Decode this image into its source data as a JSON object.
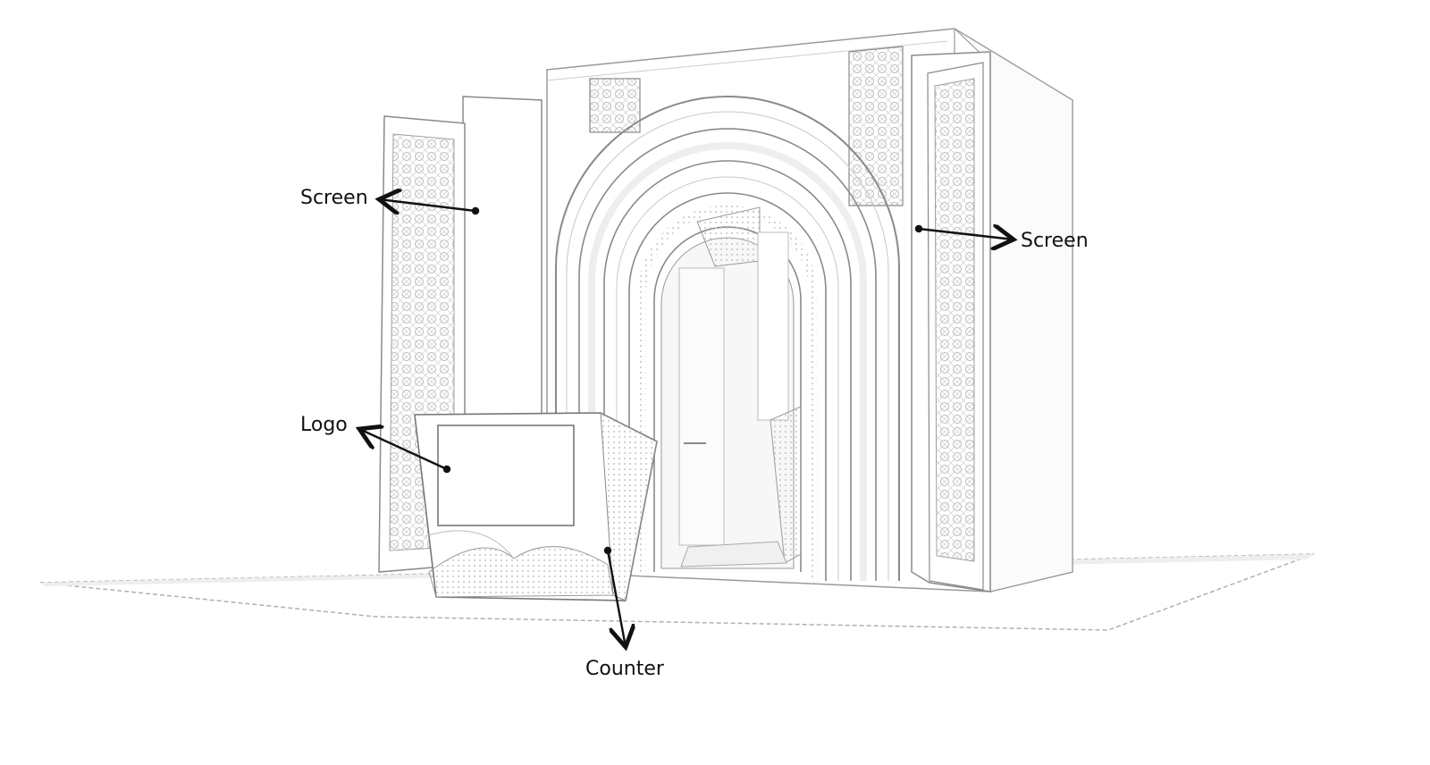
{
  "labels": {
    "screen_left": "Screen",
    "screen_right": "Screen",
    "logo": "Logo",
    "counter": "Counter"
  },
  "colors": {
    "line": "#9a9a9a",
    "dark_line": "#6e6e6e",
    "pattern": "#b9b9b9",
    "arrow": "#111111"
  }
}
